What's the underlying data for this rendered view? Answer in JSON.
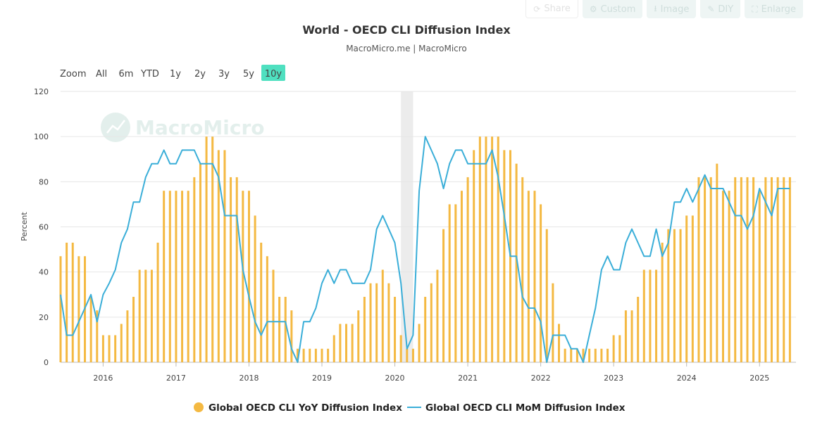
{
  "toolbar": {
    "share": "Share",
    "custom": "Custom",
    "image": "Image",
    "diy": "DIY",
    "enlarge": "Enlarge"
  },
  "range_selector": {
    "zoom_label": "Zoom",
    "buttons": [
      "All",
      "6m",
      "YTD",
      "1y",
      "2y",
      "3y",
      "5y",
      "10y"
    ],
    "selected": "10y",
    "selected_color": "#4fe0c0"
  },
  "watermark": "MacroMicro",
  "colors": {
    "yoy": "#f4b942",
    "mom": "#3aaed8",
    "recession_band": "#ececec"
  },
  "chart_data": {
    "type": "bar",
    "title": "World - OECD CLI Diffusion Index",
    "subtitle": "MacroMicro.me | MacroMicro",
    "ylabel": "Percent",
    "ylim": [
      0,
      120
    ],
    "yticks": [
      0,
      20,
      40,
      60,
      80,
      100,
      120
    ],
    "xlim": [
      "2015-06",
      "2025-07"
    ],
    "xticks": [
      "2016",
      "2017",
      "2018",
      "2019",
      "2020",
      "2021",
      "2022",
      "2023",
      "2024",
      "2025"
    ],
    "grid": true,
    "legend_position": "bottom",
    "shaded_period": [
      "2020-02",
      "2020-04"
    ],
    "x": [
      "2015-06",
      "2015-07",
      "2015-08",
      "2015-09",
      "2015-10",
      "2015-11",
      "2015-12",
      "2016-01",
      "2016-02",
      "2016-03",
      "2016-04",
      "2016-05",
      "2016-06",
      "2016-07",
      "2016-08",
      "2016-09",
      "2016-10",
      "2016-11",
      "2016-12",
      "2017-01",
      "2017-02",
      "2017-03",
      "2017-04",
      "2017-05",
      "2017-06",
      "2017-07",
      "2017-08",
      "2017-09",
      "2017-10",
      "2017-11",
      "2017-12",
      "2018-01",
      "2018-02",
      "2018-03",
      "2018-04",
      "2018-05",
      "2018-06",
      "2018-07",
      "2018-08",
      "2018-09",
      "2018-10",
      "2018-11",
      "2018-12",
      "2019-01",
      "2019-02",
      "2019-03",
      "2019-04",
      "2019-05",
      "2019-06",
      "2019-07",
      "2019-08",
      "2019-09",
      "2019-10",
      "2019-11",
      "2019-12",
      "2020-01",
      "2020-02",
      "2020-03",
      "2020-04",
      "2020-05",
      "2020-06",
      "2020-07",
      "2020-08",
      "2020-09",
      "2020-10",
      "2020-11",
      "2020-12",
      "2021-01",
      "2021-02",
      "2021-03",
      "2021-04",
      "2021-05",
      "2021-06",
      "2021-07",
      "2021-08",
      "2021-09",
      "2021-10",
      "2021-11",
      "2021-12",
      "2022-01",
      "2022-02",
      "2022-03",
      "2022-04",
      "2022-05",
      "2022-06",
      "2022-07",
      "2022-08",
      "2022-09",
      "2022-10",
      "2022-11",
      "2022-12",
      "2023-01",
      "2023-02",
      "2023-03",
      "2023-04",
      "2023-05",
      "2023-06",
      "2023-07",
      "2023-08",
      "2023-09",
      "2023-10",
      "2023-11",
      "2023-12",
      "2024-01",
      "2024-02",
      "2024-03",
      "2024-04",
      "2024-05",
      "2024-06",
      "2024-07",
      "2024-08",
      "2024-09",
      "2024-10",
      "2024-11",
      "2024-12",
      "2025-01",
      "2025-02",
      "2025-03",
      "2025-04",
      "2025-05",
      "2025-06"
    ],
    "series": [
      {
        "name": "Global OECD CLI YoY Diffusion Index",
        "type": "bar",
        "values": [
          47,
          53,
          53,
          47,
          47,
          29,
          23,
          12,
          12,
          12,
          17,
          23,
          29,
          41,
          41,
          41,
          53,
          76,
          76,
          76,
          76,
          76,
          82,
          88,
          100,
          100,
          94,
          94,
          82,
          82,
          76,
          76,
          65,
          53,
          47,
          41,
          29,
          29,
          23,
          6,
          6,
          6,
          6,
          6,
          6,
          12,
          17,
          17,
          17,
          23,
          29,
          35,
          35,
          41,
          35,
          29,
          12,
          6,
          6,
          17,
          29,
          35,
          41,
          59,
          70,
          70,
          76,
          82,
          94,
          100,
          100,
          100,
          100,
          94,
          94,
          88,
          82,
          76,
          76,
          70,
          59,
          35,
          17,
          6,
          6,
          6,
          6,
          6,
          6,
          6,
          6,
          12,
          12,
          23,
          23,
          29,
          41,
          41,
          41,
          53,
          59,
          59,
          59,
          65,
          65,
          82,
          82,
          82,
          88,
          76,
          76,
          82,
          82,
          82,
          82,
          76,
          82,
          82,
          82,
          82,
          82
        ]
      },
      {
        "name": "Global OECD CLI MoM Diffusion Index",
        "type": "line",
        "values": [
          30,
          12,
          12,
          18,
          24,
          30,
          18,
          30,
          35,
          41,
          53,
          59,
          71,
          71,
          82,
          88,
          88,
          94,
          88,
          88,
          94,
          94,
          94,
          88,
          88,
          88,
          82,
          65,
          65,
          65,
          41,
          29,
          18,
          12,
          18,
          18,
          18,
          18,
          6,
          0,
          18,
          18,
          24,
          35,
          41,
          35,
          41,
          41,
          35,
          35,
          35,
          41,
          59,
          65,
          59,
          53,
          35,
          6,
          12,
          76,
          100,
          94,
          88,
          77,
          88,
          94,
          94,
          88,
          88,
          88,
          88,
          94,
          82,
          65,
          47,
          47,
          29,
          24,
          24,
          18,
          0,
          12,
          12,
          12,
          6,
          6,
          0,
          12,
          24,
          41,
          47,
          41,
          41,
          53,
          59,
          53,
          47,
          47,
          59,
          47,
          53,
          71,
          71,
          77,
          71,
          77,
          83,
          77,
          77,
          77,
          71,
          65,
          65,
          59,
          65,
          77,
          71,
          65,
          77,
          77,
          77
        ]
      }
    ]
  }
}
